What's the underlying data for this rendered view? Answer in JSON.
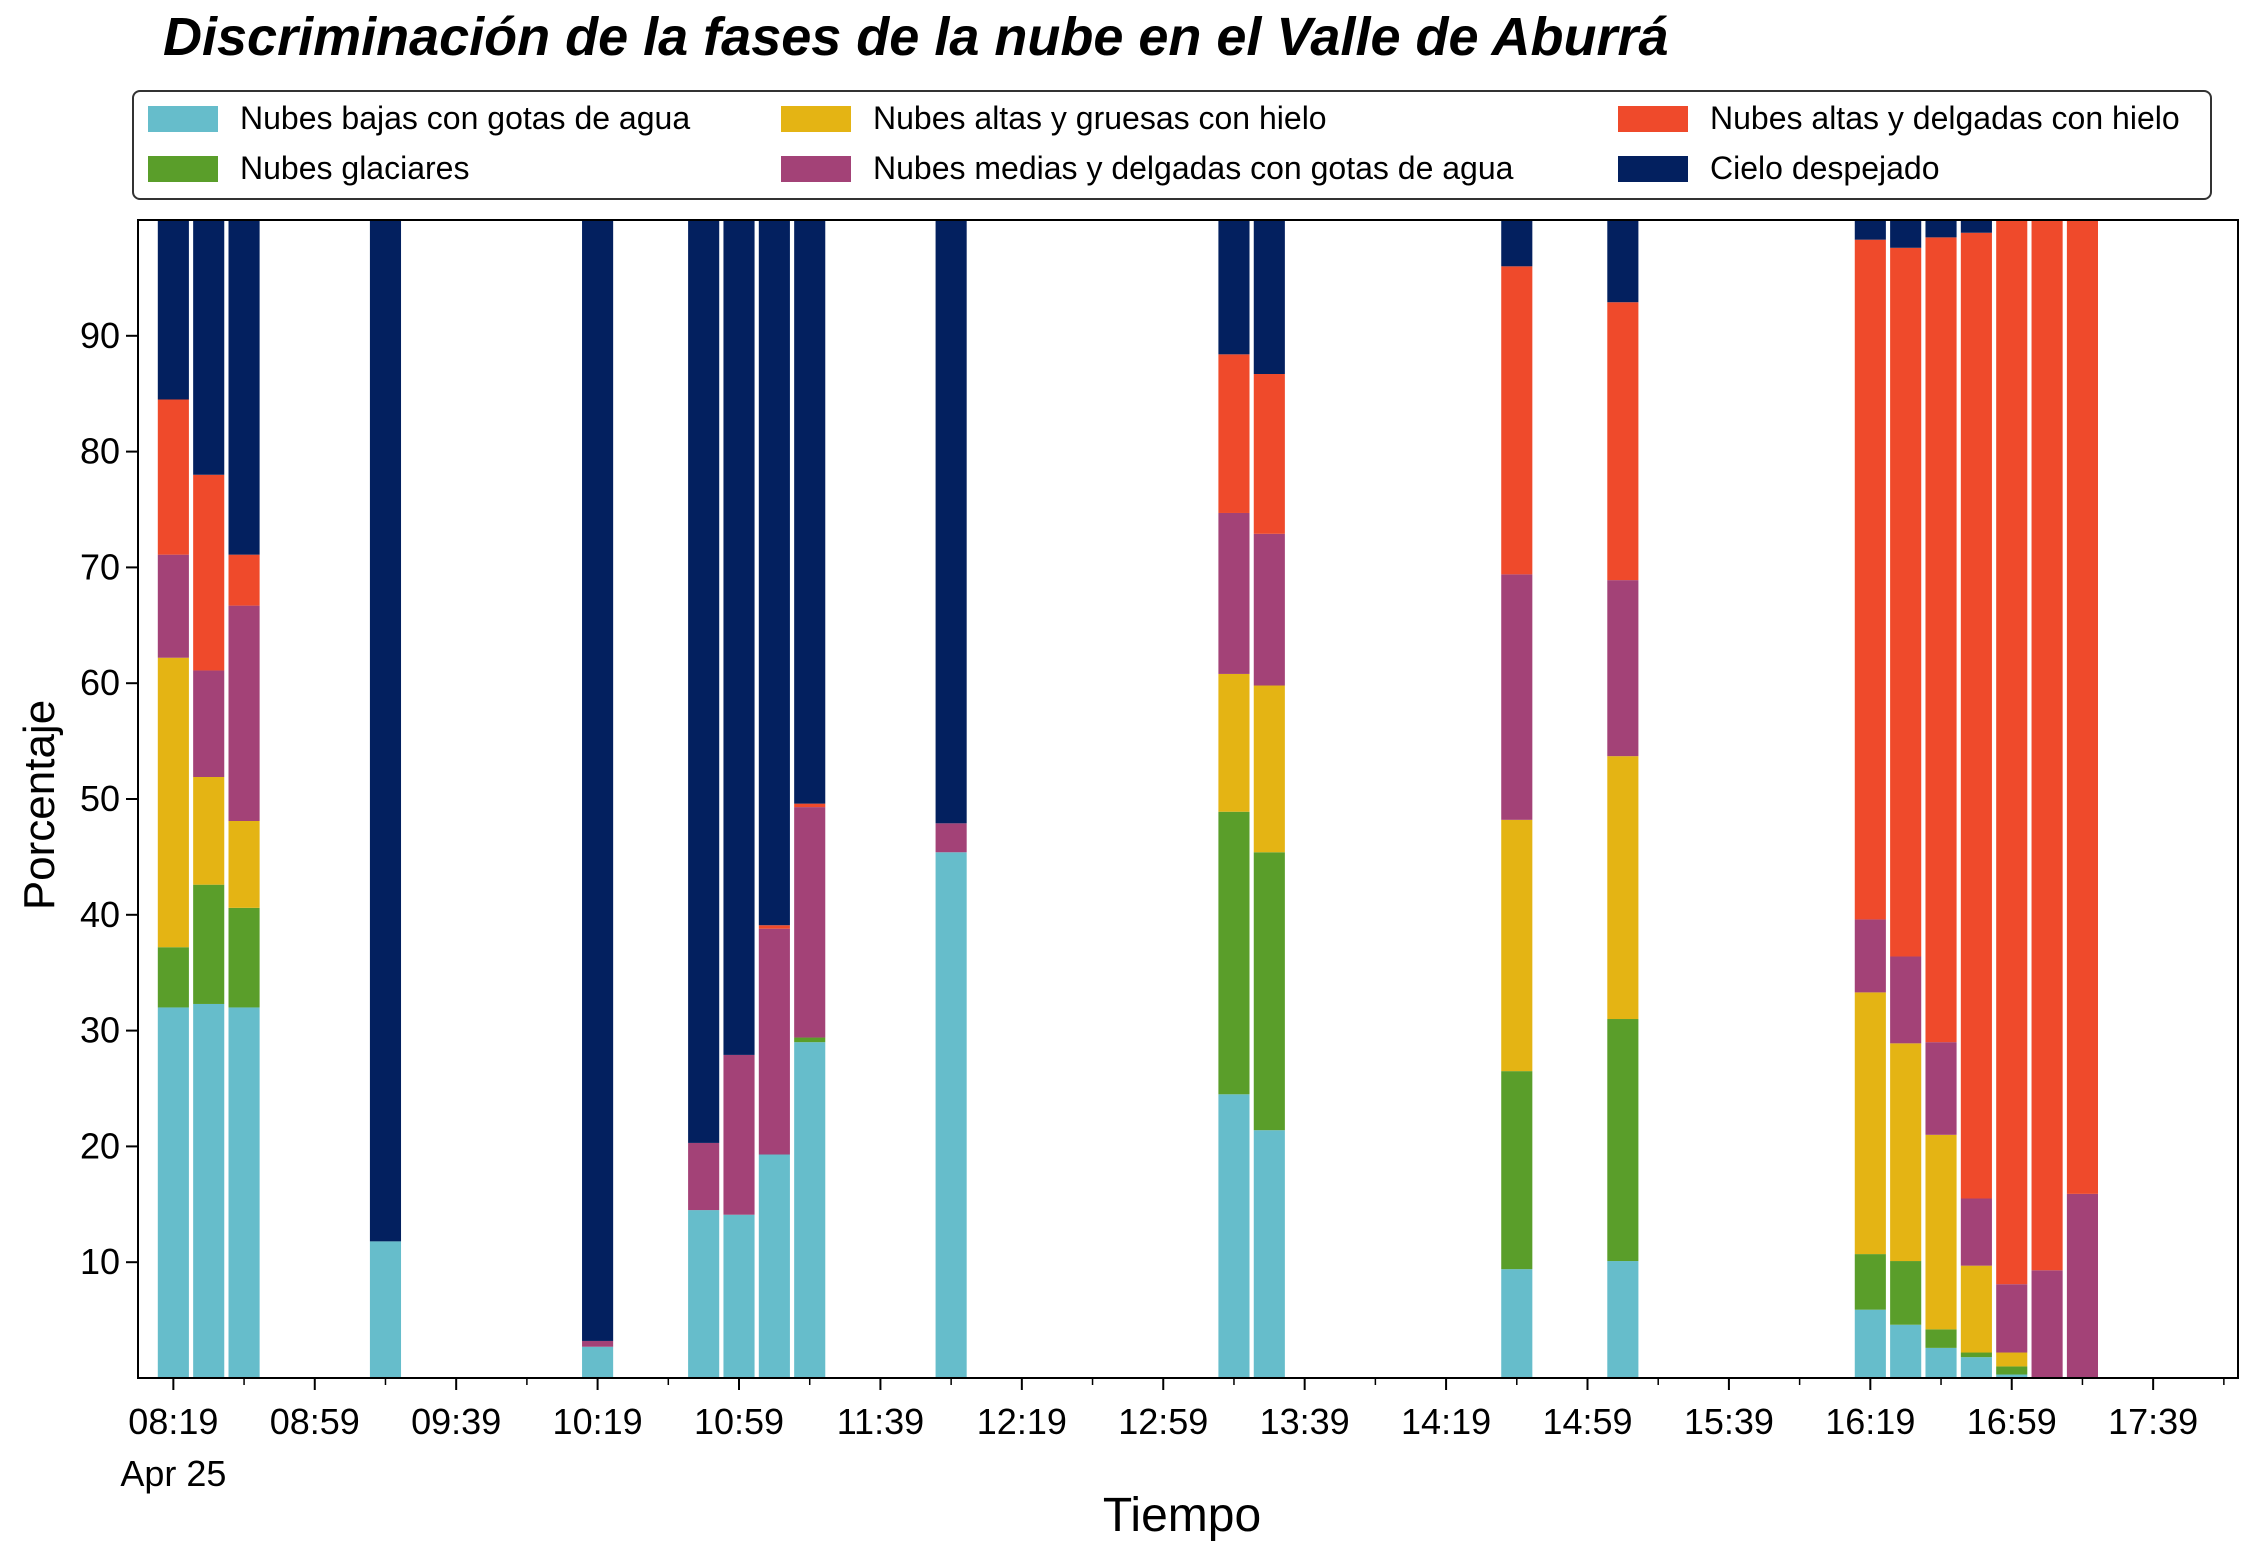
{
  "colors": {
    "low_water": "#66bdcb",
    "glacial": "#5a9e2a",
    "high_thick_ice": "#e4b414",
    "mid_thin_water": "#a34277",
    "high_thin_ice": "#ef4a2b",
    "clear_sky": "#03205f"
  },
  "chart_data": {
    "type": "bar",
    "stacked": true,
    "title": "Discriminación de la fases de la nube en el Valle de Aburrá",
    "xlabel": "Tiempo",
    "ylabel": "Porcentaje",
    "ylim": [
      0,
      100
    ],
    "yticks": [
      10,
      20,
      30,
      40,
      50,
      60,
      70,
      80,
      90
    ],
    "xlim": [
      "08:09",
      "18:03"
    ],
    "xticks": [
      "08:19",
      "08:59",
      "09:39",
      "10:19",
      "10:59",
      "11:39",
      "12:19",
      "12:59",
      "13:39",
      "14:19",
      "14:59",
      "15:39",
      "16:19",
      "16:59",
      "17:39"
    ],
    "xdate_label": "Apr 25",
    "grid": false,
    "legend": {
      "placement": "top",
      "columns": 3
    },
    "x": [
      "08:19",
      "08:29",
      "08:39",
      "09:19",
      "10:19",
      "10:49",
      "10:59",
      "11:09",
      "11:19",
      "11:59",
      "13:19",
      "13:29",
      "14:39",
      "15:09",
      "16:19",
      "16:29",
      "16:39",
      "16:49",
      "16:59",
      "17:09",
      "17:19"
    ],
    "series": [
      {
        "name": "Nubes bajas con gotas de agua",
        "color_key": "low_water",
        "values": [
          32,
          32.3,
          32,
          11.8,
          2.7,
          14.5,
          14.1,
          19.3,
          29,
          45.4,
          24.5,
          21.4,
          9.4,
          10.1,
          5.9,
          4.6,
          2.6,
          1.8,
          0.3,
          0,
          0
        ]
      },
      {
        "name": "Nubes glaciares",
        "color_key": "glacial",
        "values": [
          5.2,
          10.3,
          8.6,
          0,
          0,
          0,
          0,
          0,
          0.4,
          0,
          24.4,
          24,
          17.1,
          20.9,
          4.8,
          5.5,
          1.6,
          0.4,
          0.7,
          0,
          0
        ]
      },
      {
        "name": "Nubes altas y gruesas con hielo",
        "color_key": "high_thick_ice",
        "values": [
          25,
          9.3,
          7.5,
          0,
          0,
          0,
          0,
          0,
          0,
          0,
          11.9,
          14.4,
          21.7,
          22.7,
          22.6,
          18.8,
          16.8,
          7.5,
          1.2,
          0,
          0
        ]
      },
      {
        "name": "Nubes medias y delgadas con gotas de agua",
        "color_key": "mid_thin_water",
        "values": [
          8.9,
          9.2,
          18.6,
          0,
          0.5,
          5.8,
          13.8,
          19.5,
          19.9,
          2.5,
          13.9,
          13.1,
          21.2,
          15.2,
          6.3,
          7.5,
          8,
          5.8,
          5.9,
          9.3,
          15.9
        ]
      },
      {
        "name": "Nubes altas y delgadas con hielo",
        "color_key": "high_thin_ice",
        "values": [
          13.4,
          16.9,
          4.4,
          0,
          0,
          0,
          0,
          0.3,
          0.3,
          0,
          13.7,
          13.8,
          26.6,
          24,
          58.7,
          61.2,
          69.5,
          83.4,
          91.9,
          90.7,
          84.1
        ]
      },
      {
        "name": "Cielo despejado",
        "color_key": "clear_sky",
        "values": [
          15.5,
          22,
          28.9,
          88.2,
          96.8,
          79.7,
          72.1,
          60.9,
          50.4,
          52.1,
          11.6,
          13.3,
          4,
          7.1,
          1.7,
          2.4,
          1.5,
          1.1,
          0,
          0,
          0
        ]
      }
    ]
  }
}
